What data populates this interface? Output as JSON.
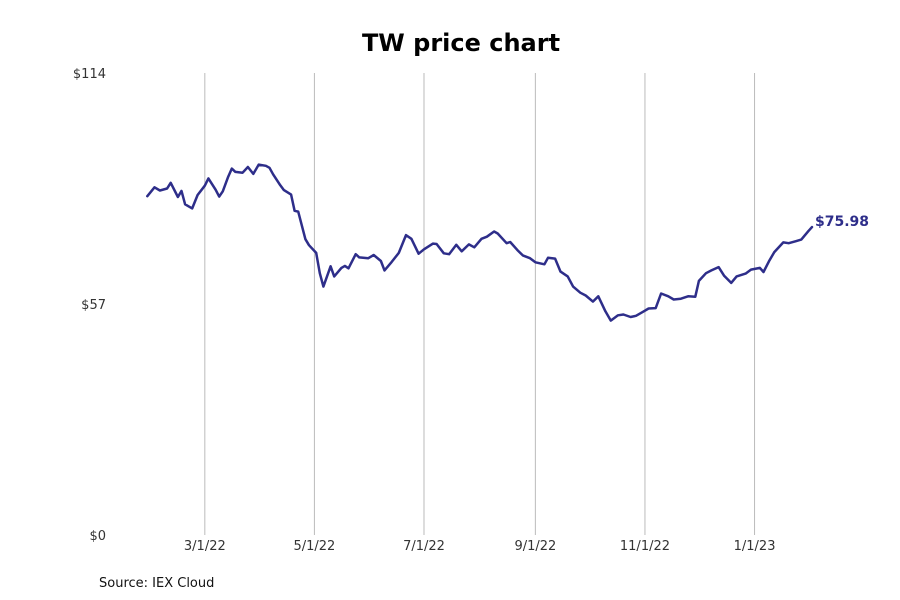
{
  "chart_data": {
    "type": "line",
    "title": "TW price chart",
    "source": "Source: IEX Cloud",
    "xlabel": "",
    "ylabel": "",
    "grid": "vertical",
    "line_color": "#2e2e8a",
    "grid_color": "#bbbbbb",
    "ylim": [
      0,
      114
    ],
    "y_ticks": [
      {
        "value": 0,
        "label": "$0"
      },
      {
        "value": 57,
        "label": "$57"
      },
      {
        "value": 114,
        "label": "$114"
      }
    ],
    "xlim": [
      "2022-01-10",
      "2023-02-12"
    ],
    "x_ticks": [
      {
        "date": "2022-03-01",
        "label": "3/1/22"
      },
      {
        "date": "2022-05-01",
        "label": "5/1/22"
      },
      {
        "date": "2022-07-01",
        "label": "7/1/22"
      },
      {
        "date": "2022-09-01",
        "label": "9/1/22"
      },
      {
        "date": "2022-11-01",
        "label": "11/1/22"
      },
      {
        "date": "2023-01-01",
        "label": "1/1/23"
      }
    ],
    "last_value_label": "$75.98",
    "series": [
      {
        "points": [
          [
            "2022-01-28",
            83.6
          ],
          [
            "2022-02-01",
            85.8
          ],
          [
            "2022-02-04",
            85.0
          ],
          [
            "2022-02-08",
            85.5
          ],
          [
            "2022-02-10",
            86.9
          ],
          [
            "2022-02-14",
            83.4
          ],
          [
            "2022-02-16",
            84.9
          ],
          [
            "2022-02-18",
            81.6
          ],
          [
            "2022-02-22",
            80.6
          ],
          [
            "2022-02-25",
            83.9
          ],
          [
            "2022-03-01",
            86.2
          ],
          [
            "2022-03-03",
            88.0
          ],
          [
            "2022-03-07",
            85.2
          ],
          [
            "2022-03-09",
            83.5
          ],
          [
            "2022-03-11",
            84.8
          ],
          [
            "2022-03-14",
            88.4
          ],
          [
            "2022-03-16",
            90.4
          ],
          [
            "2022-03-18",
            89.6
          ],
          [
            "2022-03-22",
            89.4
          ],
          [
            "2022-03-25",
            90.8
          ],
          [
            "2022-03-28",
            89.1
          ],
          [
            "2022-03-31",
            91.4
          ],
          [
            "2022-04-04",
            91.1
          ],
          [
            "2022-04-06",
            90.6
          ],
          [
            "2022-04-08",
            89.0
          ],
          [
            "2022-04-12",
            86.3
          ],
          [
            "2022-04-14",
            85.1
          ],
          [
            "2022-04-18",
            84.0
          ],
          [
            "2022-04-20",
            80.0
          ],
          [
            "2022-04-22",
            79.8
          ],
          [
            "2022-04-26",
            73.0
          ],
          [
            "2022-04-28",
            71.5
          ],
          [
            "2022-05-02",
            69.6
          ],
          [
            "2022-05-04",
            64.6
          ],
          [
            "2022-05-06",
            61.3
          ],
          [
            "2022-05-10",
            66.3
          ],
          [
            "2022-05-12",
            63.8
          ],
          [
            "2022-05-16",
            65.9
          ],
          [
            "2022-05-18",
            66.4
          ],
          [
            "2022-05-20",
            65.8
          ],
          [
            "2022-05-24",
            69.3
          ],
          [
            "2022-05-26",
            68.5
          ],
          [
            "2022-05-31",
            68.3
          ],
          [
            "2022-06-03",
            69.1
          ],
          [
            "2022-06-07",
            67.6
          ],
          [
            "2022-06-09",
            65.3
          ],
          [
            "2022-06-13",
            67.4
          ],
          [
            "2022-06-17",
            69.6
          ],
          [
            "2022-06-21",
            74.0
          ],
          [
            "2022-06-24",
            73.1
          ],
          [
            "2022-06-28",
            69.4
          ],
          [
            "2022-07-01",
            70.5
          ],
          [
            "2022-07-06",
            71.9
          ],
          [
            "2022-07-08",
            71.8
          ],
          [
            "2022-07-12",
            69.5
          ],
          [
            "2022-07-15",
            69.3
          ],
          [
            "2022-07-19",
            71.6
          ],
          [
            "2022-07-22",
            70.0
          ],
          [
            "2022-07-26",
            71.7
          ],
          [
            "2022-07-29",
            71.0
          ],
          [
            "2022-08-02",
            73.1
          ],
          [
            "2022-08-05",
            73.6
          ],
          [
            "2022-08-09",
            74.9
          ],
          [
            "2022-08-11",
            74.4
          ],
          [
            "2022-08-16",
            72.0
          ],
          [
            "2022-08-18",
            72.3
          ],
          [
            "2022-08-22",
            70.3
          ],
          [
            "2022-08-25",
            69.0
          ],
          [
            "2022-08-29",
            68.3
          ],
          [
            "2022-09-01",
            67.3
          ],
          [
            "2022-09-06",
            66.8
          ],
          [
            "2022-09-08",
            68.4
          ],
          [
            "2022-09-12",
            68.2
          ],
          [
            "2022-09-15",
            65.0
          ],
          [
            "2022-09-19",
            63.8
          ],
          [
            "2022-09-22",
            61.3
          ],
          [
            "2022-09-26",
            59.8
          ],
          [
            "2022-09-29",
            59.1
          ],
          [
            "2022-10-03",
            57.6
          ],
          [
            "2022-10-06",
            58.9
          ],
          [
            "2022-10-10",
            55.2
          ],
          [
            "2022-10-13",
            52.9
          ],
          [
            "2022-10-17",
            54.2
          ],
          [
            "2022-10-20",
            54.4
          ],
          [
            "2022-10-24",
            53.8
          ],
          [
            "2022-10-27",
            54.1
          ],
          [
            "2022-10-31",
            55.1
          ],
          [
            "2022-11-03",
            55.9
          ],
          [
            "2022-11-07",
            56.0
          ],
          [
            "2022-11-10",
            59.6
          ],
          [
            "2022-11-14",
            58.9
          ],
          [
            "2022-11-17",
            58.1
          ],
          [
            "2022-11-21",
            58.3
          ],
          [
            "2022-11-25",
            58.9
          ],
          [
            "2022-11-29",
            58.8
          ],
          [
            "2022-12-01",
            62.7
          ],
          [
            "2022-12-05",
            64.6
          ],
          [
            "2022-12-08",
            65.3
          ],
          [
            "2022-12-12",
            66.1
          ],
          [
            "2022-12-15",
            64.0
          ],
          [
            "2022-12-19",
            62.2
          ],
          [
            "2022-12-22",
            63.8
          ],
          [
            "2022-12-27",
            64.5
          ],
          [
            "2022-12-30",
            65.5
          ],
          [
            "2023-01-04",
            65.9
          ],
          [
            "2023-01-06",
            64.9
          ],
          [
            "2023-01-09",
            67.5
          ],
          [
            "2023-01-12",
            69.8
          ],
          [
            "2023-01-17",
            72.2
          ],
          [
            "2023-01-20",
            72.0
          ],
          [
            "2023-01-24",
            72.5
          ],
          [
            "2023-01-27",
            72.9
          ],
          [
            "2023-01-31",
            75.0
          ],
          [
            "2023-02-02",
            75.98
          ]
        ]
      }
    ]
  }
}
